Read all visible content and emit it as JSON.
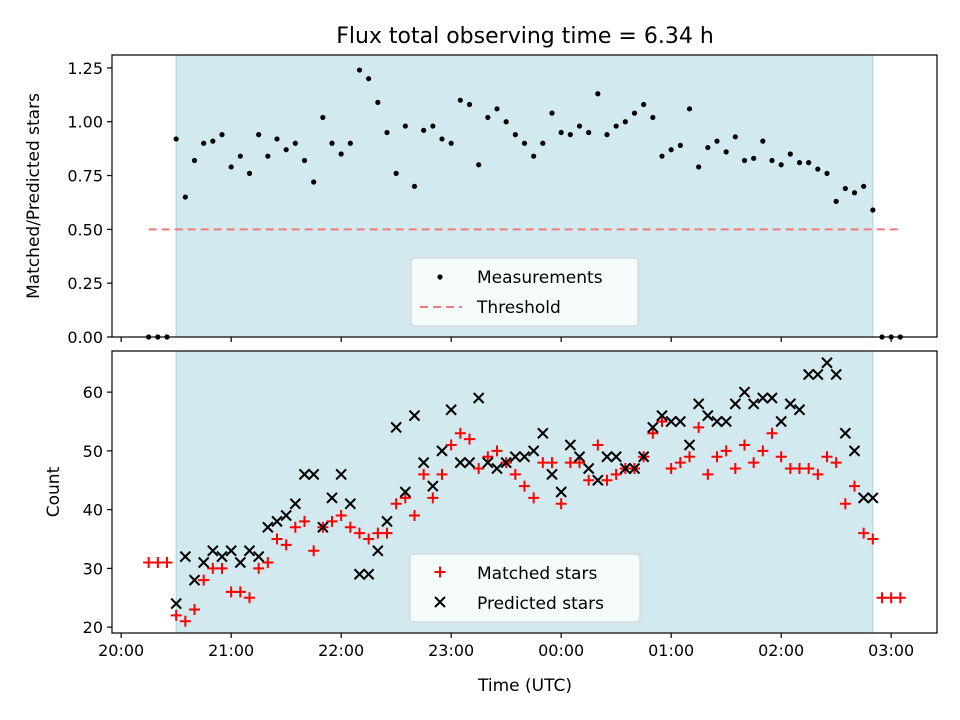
{
  "title": "Flux total observing time = 6.34 h",
  "colors": {
    "shade": "#d3e9f0",
    "shade_edge": "#a9d3e0",
    "threshold": "#f07a7a",
    "matched": "#ff0000",
    "predicted": "#000000",
    "measurement": "#000000"
  },
  "chart_data": [
    {
      "type": "scatter",
      "panel": "top",
      "ylabel": "Matched/Predicted stars",
      "ylim": [
        0,
        1.31
      ],
      "yticks": [
        0.0,
        0.25,
        0.5,
        0.75,
        1.0,
        1.25
      ],
      "ytick_labels": [
        "0.00",
        "0.25",
        "0.50",
        "0.75",
        "1.00",
        "1.25"
      ],
      "shaded_span": [
        "20:30",
        "02:50"
      ],
      "legend": {
        "position": "lower-center",
        "entries": [
          "Measurements",
          "Threshold"
        ]
      },
      "series": [
        {
          "name": "Measurements",
          "marker": "dot",
          "x": [
            "20:15",
            "20:20",
            "20:25",
            "20:30",
            "20:35",
            "20:40",
            "20:45",
            "20:50",
            "20:55",
            "21:00",
            "21:05",
            "21:10",
            "21:15",
            "21:20",
            "21:25",
            "21:30",
            "21:35",
            "21:40",
            "21:45",
            "21:50",
            "21:55",
            "22:00",
            "22:05",
            "22:10",
            "22:15",
            "22:20",
            "22:25",
            "22:30",
            "22:35",
            "22:40",
            "22:45",
            "22:50",
            "22:55",
            "23:00",
            "23:05",
            "23:10",
            "23:15",
            "23:20",
            "23:25",
            "23:30",
            "23:35",
            "23:40",
            "23:45",
            "23:50",
            "23:55",
            "00:00",
            "00:05",
            "00:10",
            "00:15",
            "00:20",
            "00:25",
            "00:30",
            "00:35",
            "00:40",
            "00:45",
            "00:50",
            "00:55",
            "01:00",
            "01:05",
            "01:10",
            "01:15",
            "01:20",
            "01:25",
            "01:30",
            "01:35",
            "01:40",
            "01:45",
            "01:50",
            "01:55",
            "02:00",
            "02:05",
            "02:10",
            "02:15",
            "02:20",
            "02:25",
            "02:30",
            "02:35",
            "02:40",
            "02:45",
            "02:50",
            "02:55",
            "03:00",
            "03:05"
          ],
          "y": [
            0.0,
            0.0,
            0.0,
            0.92,
            0.65,
            0.82,
            0.9,
            0.91,
            0.94,
            0.79,
            0.84,
            0.76,
            0.94,
            0.84,
            0.92,
            0.87,
            0.9,
            0.82,
            0.72,
            1.02,
            0.9,
            0.85,
            0.9,
            1.24,
            1.2,
            1.09,
            0.95,
            0.76,
            0.98,
            0.7,
            0.96,
            0.98,
            0.92,
            0.9,
            1.1,
            1.08,
            0.8,
            1.02,
            1.06,
            1.0,
            0.94,
            0.9,
            0.84,
            0.9,
            1.04,
            0.95,
            0.94,
            0.98,
            0.95,
            1.13,
            0.94,
            0.98,
            1.0,
            1.04,
            1.08,
            1.02,
            0.84,
            0.87,
            0.89,
            1.06,
            0.79,
            0.88,
            0.91,
            0.86,
            0.93,
            0.82,
            0.83,
            0.91,
            0.82,
            0.8,
            0.85,
            0.81,
            0.81,
            0.78,
            0.76,
            0.63,
            0.69,
            0.67,
            0.7,
            0.59,
            0.0,
            0.0,
            0.0
          ]
        },
        {
          "name": "Threshold",
          "style": "dashed",
          "x": [
            "20:15",
            "03:05"
          ],
          "y": [
            0.5,
            0.5
          ]
        }
      ]
    },
    {
      "type": "scatter",
      "panel": "bottom",
      "xlabel": "Time (UTC)",
      "ylabel": "Count",
      "ylim": [
        19,
        67
      ],
      "yticks": [
        20,
        30,
        40,
        50,
        60
      ],
      "xticks": [
        "20:00",
        "21:00",
        "22:00",
        "23:00",
        "00:00",
        "01:00",
        "02:00",
        "03:00"
      ],
      "shaded_span": [
        "20:30",
        "02:50"
      ],
      "legend": {
        "position": "lower-center",
        "entries": [
          "Matched stars",
          "Predicted stars"
        ]
      },
      "series": [
        {
          "name": "Matched stars",
          "marker": "plus",
          "x": [
            "20:15",
            "20:20",
            "20:25",
            "20:30",
            "20:35",
            "20:40",
            "20:45",
            "20:50",
            "20:55",
            "21:00",
            "21:05",
            "21:10",
            "21:15",
            "21:20",
            "21:25",
            "21:30",
            "21:35",
            "21:40",
            "21:45",
            "21:50",
            "21:55",
            "22:00",
            "22:05",
            "22:10",
            "22:15",
            "22:20",
            "22:25",
            "22:30",
            "22:35",
            "22:40",
            "22:45",
            "22:50",
            "22:55",
            "23:00",
            "23:05",
            "23:10",
            "23:15",
            "23:20",
            "23:25",
            "23:30",
            "23:35",
            "23:40",
            "23:45",
            "23:50",
            "23:55",
            "00:00",
            "00:05",
            "00:10",
            "00:15",
            "00:20",
            "00:25",
            "00:30",
            "00:35",
            "00:40",
            "00:45",
            "00:50",
            "00:55",
            "01:00",
            "01:05",
            "01:10",
            "01:15",
            "01:20",
            "01:25",
            "01:30",
            "01:35",
            "01:40",
            "01:45",
            "01:50",
            "01:55",
            "02:00",
            "02:05",
            "02:10",
            "02:15",
            "02:20",
            "02:25",
            "02:30",
            "02:35",
            "02:40",
            "02:45",
            "02:50",
            "02:55",
            "03:00",
            "03:05"
          ],
          "y": [
            31,
            31,
            31,
            22,
            21,
            23,
            28,
            30,
            30,
            26,
            26,
            25,
            30,
            31,
            35,
            34,
            37,
            38,
            33,
            37,
            38,
            39,
            37,
            36,
            35,
            36,
            36,
            41,
            42,
            39,
            46,
            42,
            46,
            51,
            53,
            52,
            47,
            49,
            50,
            48,
            46,
            44,
            42,
            48,
            48,
            41,
            48,
            48,
            45,
            51,
            45,
            46,
            47,
            47,
            49,
            53,
            55,
            47,
            48,
            49,
            54,
            46,
            49,
            50,
            47,
            51,
            48,
            50,
            53,
            49,
            47,
            47,
            47,
            46,
            49,
            48,
            41,
            44,
            36,
            35,
            25,
            25,
            25
          ]
        },
        {
          "name": "Predicted stars",
          "marker": "x",
          "x": [
            "20:30",
            "20:35",
            "20:40",
            "20:45",
            "20:50",
            "20:55",
            "21:00",
            "21:05",
            "21:10",
            "21:15",
            "21:20",
            "21:25",
            "21:30",
            "21:35",
            "21:40",
            "21:45",
            "21:50",
            "21:55",
            "22:00",
            "22:05",
            "22:10",
            "22:15",
            "22:20",
            "22:25",
            "22:30",
            "22:35",
            "22:40",
            "22:45",
            "22:50",
            "22:55",
            "23:00",
            "23:05",
            "23:10",
            "23:15",
            "23:20",
            "23:25",
            "23:30",
            "23:35",
            "23:40",
            "23:45",
            "23:50",
            "23:55",
            "00:00",
            "00:05",
            "00:10",
            "00:15",
            "00:20",
            "00:25",
            "00:30",
            "00:35",
            "00:40",
            "00:45",
            "00:50",
            "00:55",
            "01:00",
            "01:05",
            "01:10",
            "01:15",
            "01:20",
            "01:25",
            "01:30",
            "01:35",
            "01:40",
            "01:45",
            "01:50",
            "01:55",
            "02:00",
            "02:05",
            "02:10",
            "02:15",
            "02:20",
            "02:25",
            "02:30",
            "02:35",
            "02:40",
            "02:45",
            "02:50"
          ],
          "y": [
            24,
            32,
            28,
            31,
            33,
            32,
            33,
            31,
            33,
            32,
            37,
            38,
            39,
            41,
            46,
            46,
            37,
            42,
            46,
            41,
            29,
            29,
            33,
            38,
            54,
            43,
            56,
            48,
            44,
            50,
            57,
            48,
            48,
            59,
            48,
            47,
            48,
            49,
            49,
            50,
            53,
            46,
            43,
            51,
            49,
            47,
            45,
            49,
            49,
            47,
            47,
            49,
            54,
            56,
            55,
            55,
            51,
            58,
            56,
            55,
            55,
            58,
            60,
            58,
            59,
            59,
            55,
            58,
            57,
            63,
            63,
            65,
            63,
            53,
            50,
            42,
            42
          ]
        }
      ]
    }
  ]
}
